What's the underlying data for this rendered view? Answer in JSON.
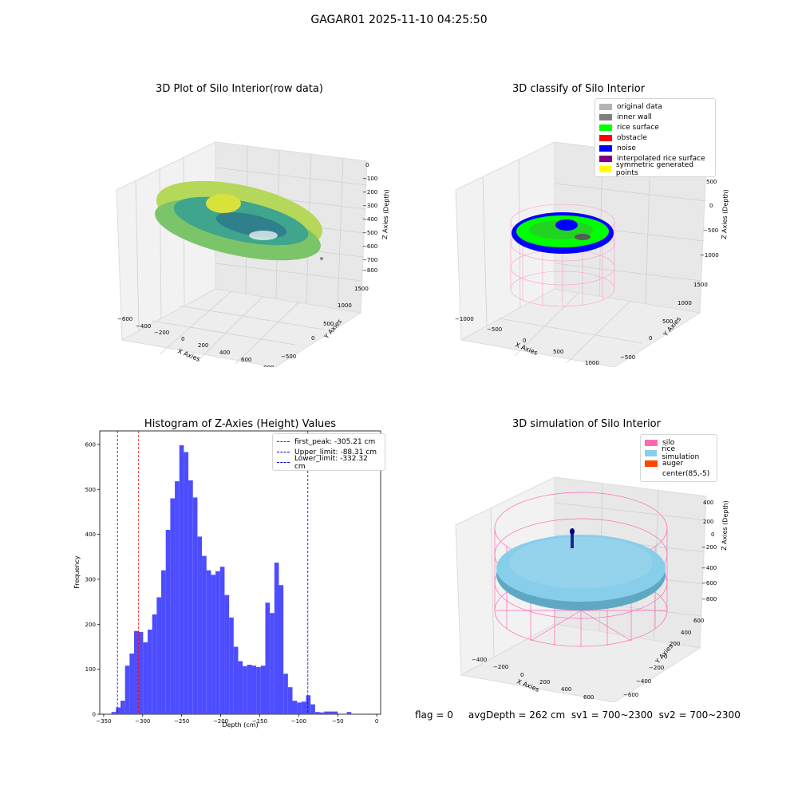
{
  "figure_title": "GAGAR01 2025-11-10 04:25:50",
  "status_text": "flag = 0     avgDepth = 262 cm  sv1 = 700~2300  sv2 = 700~2300",
  "colors": {
    "hist_bar": "#4d4dff",
    "first_peak": "#e00000",
    "limits": "#0000cc",
    "silo_wire": "#ff69b4",
    "rice_sim": "#87ceeb",
    "auger": "#ff4500"
  },
  "chart_data": [
    {
      "type": "scatter",
      "title": "3D Plot of Silo Interior(row data)",
      "xlabel": "X Axies",
      "ylabel": "Y Axies",
      "zlabel": "Z Axies (Depth)",
      "x_ticks": [
        "−600",
        "−400",
        "−200",
        "0",
        "200",
        "400",
        "600",
        "800"
      ],
      "y_ticks": [
        "−500",
        "0",
        "500",
        "1000",
        "1500"
      ],
      "z_ticks": [
        "0",
        "−100",
        "−200",
        "−300",
        "−400",
        "−500",
        "−600",
        "−700",
        "−800"
      ],
      "xlim": [
        -650,
        850
      ],
      "ylim": [
        -650,
        1600
      ],
      "zlim": [
        -830,
        30
      ]
    },
    {
      "type": "scatter",
      "title": "3D classify of Silo Interior",
      "xlabel": "X Axies",
      "ylabel": "Y Axies",
      "zlabel": "Z Axies (Depth)",
      "x_ticks": [
        "−1000",
        "−500",
        "0",
        "500",
        "1000"
      ],
      "y_ticks": [
        "−500",
        "0",
        "500",
        "1000",
        "1500"
      ],
      "z_ticks": [
        "500",
        "0",
        "−500",
        "−1000"
      ],
      "legend": [
        {
          "label": "original data",
          "color": "#b3b3b3"
        },
        {
          "label": "inner wall",
          "color": "#808080"
        },
        {
          "label": "rice surface",
          "color": "#00ff00"
        },
        {
          "label": "obstacle",
          "color": "#ff0000"
        },
        {
          "label": "noise",
          "color": "#0000ff"
        },
        {
          "label": "interpolated rice surface",
          "color": "#800080"
        },
        {
          "label": "symmetric generated points",
          "color": "#ffff00"
        }
      ]
    },
    {
      "type": "bar",
      "title": "Histogram of Z-Axies (Height) Values",
      "xlabel": "Depth (cm)",
      "ylabel": "Frequency",
      "xlim": [
        -355,
        5
      ],
      "ylim": [
        0,
        630
      ],
      "x_ticks": [
        -350,
        -300,
        -250,
        -200,
        -150,
        -100,
        -50,
        0
      ],
      "y_ticks": [
        0,
        100,
        200,
        300,
        400,
        500,
        600
      ],
      "bin_start": -340,
      "bin_width": 5.8,
      "values": [
        5,
        15,
        30,
        108,
        135,
        185,
        183,
        160,
        188,
        222,
        260,
        320,
        410,
        480,
        518,
        598,
        583,
        520,
        482,
        395,
        352,
        320,
        310,
        318,
        328,
        265,
        215,
        150,
        118,
        107,
        110,
        108,
        105,
        108,
        248,
        225,
        337,
        287,
        90,
        60,
        30,
        26,
        28,
        42,
        22,
        5,
        4,
        6,
        6,
        6,
        0,
        0,
        5
      ],
      "vlines": [
        {
          "value": -305.21,
          "label": "first_peak: -305.21 cm",
          "color": "#e00000"
        },
        {
          "value": -88.31,
          "label": "Upper_limit: -88.31 cm",
          "color": "#0000cc"
        },
        {
          "value": -332.32,
          "label": "Lower_limit: -332.32 cm",
          "color": "#0000cc"
        }
      ]
    },
    {
      "type": "scatter",
      "title": "3D simulation of Silo Interior",
      "xlabel": "X Axies",
      "ylabel": "Y Axies",
      "zlabel": "Z Axies (Depth)",
      "x_ticks": [
        "−400",
        "−200",
        "0",
        "200",
        "400",
        "600"
      ],
      "y_ticks": [
        "−600",
        "−400",
        "−200",
        "0",
        "200",
        "400",
        "600"
      ],
      "z_ticks": [
        "400",
        "200",
        "0",
        "−200",
        "−400",
        "−600",
        "−800"
      ],
      "legend": [
        {
          "label": "silo",
          "color": "#ff69b4"
        },
        {
          "label": "rice simulation",
          "color": "#87ceeb"
        },
        {
          "label": "auger",
          "color": "#ff4500"
        },
        {
          "label": "center(85,-5)",
          "color": ""
        }
      ]
    }
  ]
}
